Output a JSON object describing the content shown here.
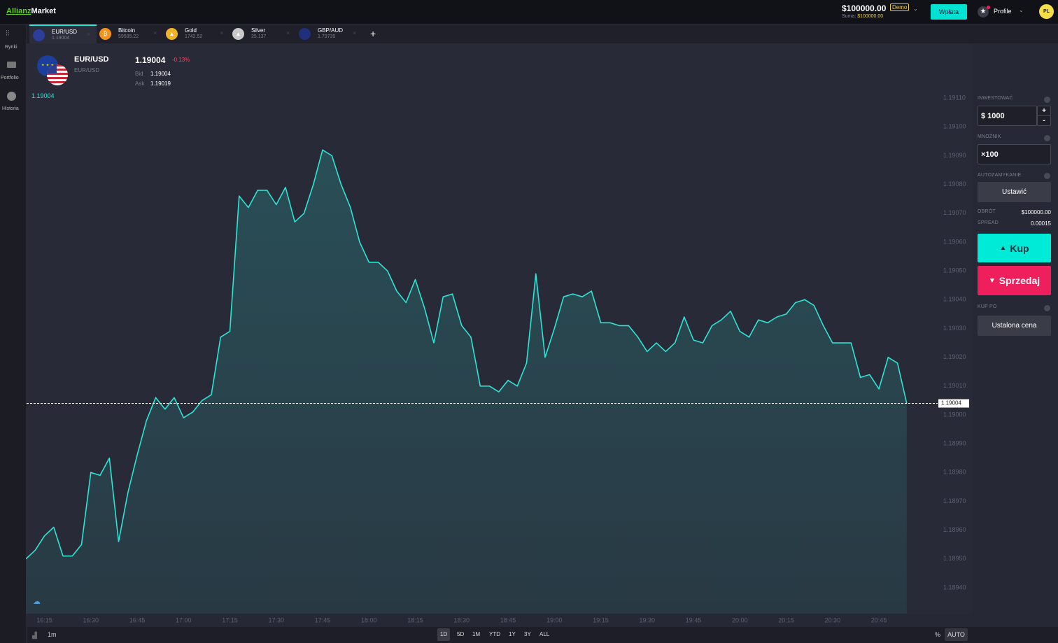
{
  "header": {
    "logo_a": "Allianz",
    "logo_b": "Market",
    "balance": "$100000.00",
    "mode": "Demo",
    "sum_label": "Suma:",
    "sum_value": "$100000.00",
    "deposit": "Wpłata",
    "profile": "Profile",
    "lang": "PL"
  },
  "nav": [
    "Rynki",
    "Portfolio",
    "Historia"
  ],
  "tabs": [
    {
      "name": "EUR/USD",
      "price": "1.19004"
    },
    {
      "name": "Bitcoin",
      "price": "59585.22"
    },
    {
      "name": "Gold",
      "price": "1742.52"
    },
    {
      "name": "Silver",
      "price": "25.137"
    },
    {
      "name": "GBP/AUD",
      "price": "1.79739"
    }
  ],
  "instrument": {
    "name": "EUR/USD",
    "subtitle": "EUR/USD",
    "price": "1.19004",
    "change": "-0.13%",
    "bid_label": "Bid",
    "bid": "1.19004",
    "ask_label": "Ask",
    "ask": "1.19019"
  },
  "panel": {
    "invest_label": "INWESTOWAĆ",
    "invest": "$ 1000",
    "plus": "+",
    "minus": "-",
    "multiplier_label": "MNOŻNIK",
    "multiplier": "×100",
    "autoclose_label": "AUTOZAMYKANIE",
    "autoclose": "Ustawić",
    "turnover_label": "OBRÓT",
    "turnover": "$100000.00",
    "spread_label": "SPREAD",
    "spread": "0.00015",
    "buy": "Kup",
    "sell": "Sprzedaj",
    "buy_at_label": "KUP PO",
    "buy_at": "Ustalona cena"
  },
  "footer": {
    "interval": "1m",
    "ranges": [
      "1D",
      "5D",
      "1M",
      "YTD",
      "1Y",
      "3Y",
      "ALL"
    ],
    "percent": "%",
    "auto": "AUTO"
  },
  "chart_data": {
    "type": "area",
    "color": "#2fe3d5",
    "grid": false,
    "x": [
      969,
      972,
      975,
      978,
      981,
      984,
      987,
      990,
      993,
      996,
      999,
      1002,
      1005,
      1008,
      1011,
      1014,
      1017,
      1020,
      1023,
      1026,
      1029,
      1032,
      1035,
      1038,
      1041,
      1044,
      1047,
      1050,
      1053,
      1056,
      1059,
      1062,
      1065,
      1068,
      1071,
      1074,
      1077,
      1080,
      1083,
      1086,
      1089,
      1092,
      1095,
      1098,
      1101,
      1104,
      1107,
      1110,
      1113,
      1116,
      1119,
      1122,
      1125,
      1128,
      1131,
      1134,
      1137,
      1140,
      1143,
      1146,
      1149,
      1152,
      1155,
      1158,
      1161,
      1164,
      1167,
      1170,
      1173,
      1176,
      1179,
      1182,
      1185,
      1188,
      1191,
      1194,
      1197,
      1200,
      1203,
      1206,
      1209,
      1212,
      1215,
      1218,
      1221,
      1224,
      1227,
      1230,
      1233,
      1236,
      1239,
      1242,
      1245,
      1248,
      1251,
      1254
    ],
    "values": [
      1.1895,
      1.18953,
      1.18958,
      1.18961,
      1.18951,
      1.18951,
      1.18955,
      1.1898,
      1.18979,
      1.18985,
      1.18956,
      1.18973,
      1.18986,
      1.18998,
      1.19006,
      1.19002,
      1.19006,
      1.18999,
      1.19001,
      1.19005,
      1.19007,
      1.19027,
      1.19029,
      1.19076,
      1.19072,
      1.19078,
      1.19078,
      1.19073,
      1.19079,
      1.19067,
      1.1907,
      1.1908,
      1.19092,
      1.1909,
      1.1908,
      1.19072,
      1.1906,
      1.19053,
      1.19053,
      1.1905,
      1.19043,
      1.19039,
      1.19047,
      1.19037,
      1.19025,
      1.19041,
      1.19042,
      1.19031,
      1.19027,
      1.1901,
      1.1901,
      1.19008,
      1.19012,
      1.1901,
      1.19018,
      1.19049,
      1.1902,
      1.1903,
      1.19041,
      1.19042,
      1.19041,
      1.19043,
      1.19032,
      1.19032,
      1.19031,
      1.19031,
      1.19027,
      1.19022,
      1.19025,
      1.19022,
      1.19025,
      1.19034,
      1.19026,
      1.19025,
      1.19031,
      1.19033,
      1.19036,
      1.19029,
      1.19027,
      1.19033,
      1.19032,
      1.19034,
      1.19035,
      1.19039,
      1.1904,
      1.19038,
      1.19031,
      1.19025,
      1.19025,
      1.19025,
      1.19013,
      1.19014,
      1.19009,
      1.1902,
      1.19018,
      1.19004
    ],
    "last_value": 1.19004,
    "xlim": [
      969,
      1264
    ],
    "ylim": [
      1.18931,
      1.19129
    ],
    "xticks": [
      {
        "value": 975,
        "label": "16:15"
      },
      {
        "value": 990,
        "label": "16:30"
      },
      {
        "value": 1005,
        "label": "16:45"
      },
      {
        "value": 1020,
        "label": "17:00"
      },
      {
        "value": 1035,
        "label": "17:15"
      },
      {
        "value": 1050,
        "label": "17:30"
      },
      {
        "value": 1065,
        "label": "17:45"
      },
      {
        "value": 1080,
        "label": "18:00"
      },
      {
        "value": 1095,
        "label": "18:15"
      },
      {
        "value": 1110,
        "label": "18:30"
      },
      {
        "value": 1125,
        "label": "18:45"
      },
      {
        "value": 1140,
        "label": "19:00"
      },
      {
        "value": 1155,
        "label": "19:15"
      },
      {
        "value": 1170,
        "label": "19:30"
      },
      {
        "value": 1185,
        "label": "19:45"
      },
      {
        "value": 1200,
        "label": "20:00"
      },
      {
        "value": 1215,
        "label": "20:15"
      },
      {
        "value": 1230,
        "label": "20:30"
      },
      {
        "value": 1245,
        "label": "20:45"
      }
    ],
    "yticks": [
      {
        "value": 1.1894,
        "label": "1.18940"
      },
      {
        "value": 1.1895,
        "label": "1.18950"
      },
      {
        "value": 1.1896,
        "label": "1.18960"
      },
      {
        "value": 1.1897,
        "label": "1.18970"
      },
      {
        "value": 1.1898,
        "label": "1.18980"
      },
      {
        "value": 1.1899,
        "label": "1.18990"
      },
      {
        "value": 1.19,
        "label": "1.19000"
      },
      {
        "value": 1.1901,
        "label": "1.19010"
      },
      {
        "value": 1.1902,
        "label": "1.19020"
      },
      {
        "value": 1.1903,
        "label": "1.19030"
      },
      {
        "value": 1.1904,
        "label": "1.19040"
      },
      {
        "value": 1.1905,
        "label": "1.19050"
      },
      {
        "value": 1.1906,
        "label": "1.19060"
      },
      {
        "value": 1.1907,
        "label": "1.19070"
      },
      {
        "value": 1.1908,
        "label": "1.19080"
      },
      {
        "value": 1.1909,
        "label": "1.19090"
      },
      {
        "value": 1.191,
        "label": "1.19100"
      },
      {
        "value": 1.1911,
        "label": "1.19110"
      }
    ]
  }
}
